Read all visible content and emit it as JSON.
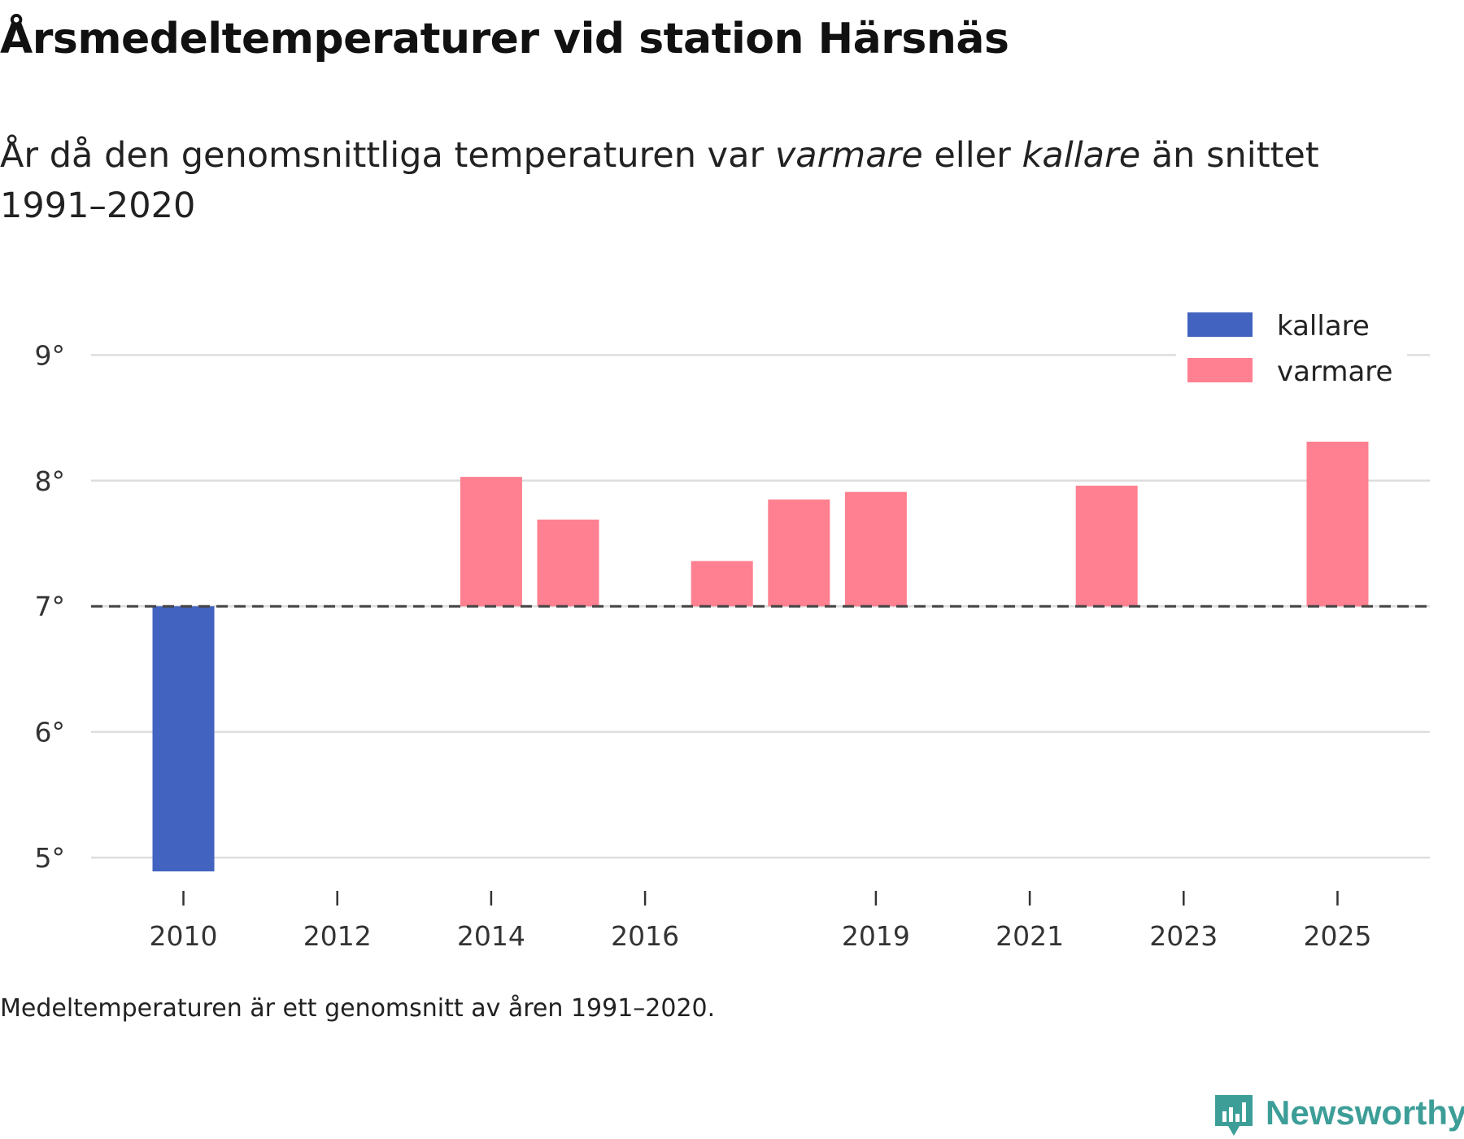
{
  "title": "Årsmedeltemperaturer vid station Härsnäs",
  "subtitle": {
    "part1": "År då den genomsnittliga temperaturen var ",
    "warm": "varmare",
    "part2": " eller ",
    "cold": "kallare",
    "part3": " än snittet 1991–2020"
  },
  "note": "Medeltemperaturen är ett genomsnitt av åren 1991–2020.",
  "brand": "Newsworthy",
  "colors": {
    "cold": "#4263bf",
    "warm": "#ff8090",
    "grid": "#dddddd",
    "reference": "#444444"
  },
  "chart_data": {
    "type": "bar",
    "baseline": 7.0,
    "ylim": [
      4.8,
      9.3
    ],
    "yticks": [
      5,
      6,
      7,
      8,
      9
    ],
    "ytick_labels": [
      "5°",
      "6°",
      "7°",
      "8°",
      "9°"
    ],
    "xlim": [
      2008.8,
      2026.2
    ],
    "xticks": [
      2010,
      2012,
      2014,
      2016,
      2019,
      2021,
      2023,
      2025
    ],
    "xtick_labels": [
      "2010",
      "2012",
      "2014",
      "2016",
      "2019",
      "2021",
      "2023",
      "2025"
    ],
    "legend": {
      "position": "top-right",
      "items": [
        {
          "label": "kallare",
          "series": "cold"
        },
        {
          "label": "varmare",
          "series": "warm"
        }
      ]
    },
    "bars": [
      {
        "year": 2010,
        "value": 4.89,
        "series": "cold"
      },
      {
        "year": 2014,
        "value": 8.03,
        "series": "warm"
      },
      {
        "year": 2015,
        "value": 7.69,
        "series": "warm"
      },
      {
        "year": 2017,
        "value": 7.36,
        "series": "warm"
      },
      {
        "year": 2018,
        "value": 7.85,
        "series": "warm"
      },
      {
        "year": 2019,
        "value": 7.91,
        "series": "warm"
      },
      {
        "year": 2022,
        "value": 7.96,
        "series": "warm"
      },
      {
        "year": 2025,
        "value": 8.31,
        "series": "warm"
      }
    ]
  }
}
